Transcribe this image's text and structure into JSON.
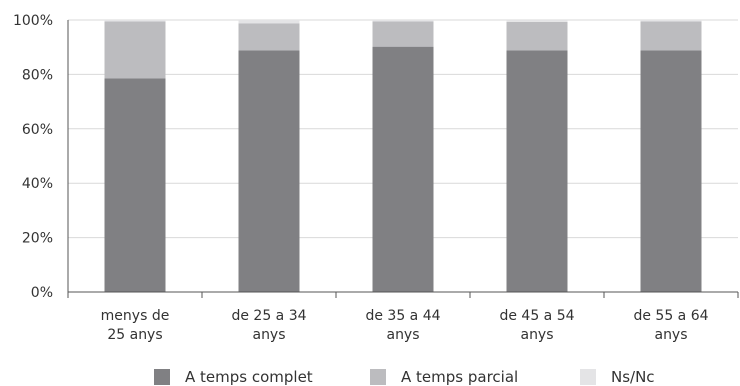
{
  "chart_data": {
    "type": "bar",
    "stacked": true,
    "categories": [
      [
        "menys de",
        "25 anys"
      ],
      [
        "de 25 a 34",
        "anys"
      ],
      [
        "de 35 a 44",
        "anys"
      ],
      [
        "de 45 a 54",
        "anys"
      ],
      [
        "de 55 a 64",
        "anys"
      ]
    ],
    "series": [
      {
        "name": "A temps complet",
        "color": "#808083",
        "values": [
          78.5,
          88.8,
          90.2,
          88.8,
          88.8
        ]
      },
      {
        "name": "A temps parcial",
        "color": "#bcbcbf",
        "values": [
          21.0,
          10.0,
          9.3,
          10.5,
          10.7
        ]
      },
      {
        "name": "Ns/Nc",
        "color": "#e4e4e6",
        "values": [
          0.5,
          1.2,
          0.5,
          0.7,
          0.5
        ]
      }
    ],
    "y_ticks": [
      "0%",
      "20%",
      "40%",
      "60%",
      "80%",
      "100%"
    ],
    "ylim": [
      0,
      100
    ],
    "grid": true,
    "legend": "bottom"
  }
}
